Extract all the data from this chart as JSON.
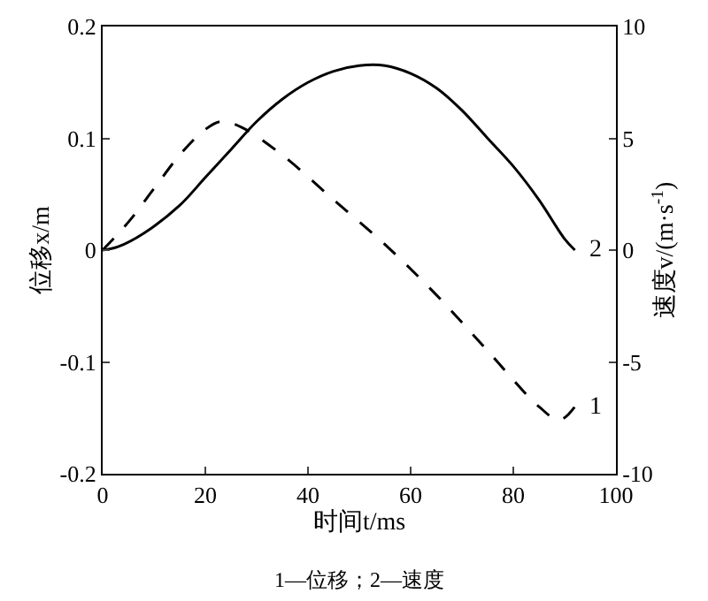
{
  "chart_data": {
    "type": "line",
    "xlabel": "时间t/ms",
    "ylabel": "位移x/m",
    "y2label": "速度v/(m·s$^{-1}$)",
    "xlim": [
      0,
      100
    ],
    "xticks": [
      0,
      20,
      40,
      60,
      80,
      100
    ],
    "ylim": [
      -0.2,
      0.2
    ],
    "yticks": [
      -0.2,
      -0.1,
      0,
      0.1,
      0.2
    ],
    "y2lim": [
      -10,
      10
    ],
    "y2ticks": [
      -10,
      -5,
      0,
      5,
      10
    ],
    "marker": "none",
    "series": [
      {
        "color": "#000000",
        "line_style": "dashed",
        "x": [
          0,
          5,
          10,
          15,
          20,
          23,
          27,
          35,
          45,
          55,
          65,
          75,
          85,
          89,
          92
        ],
        "values": [
          0,
          0.025,
          0.055,
          0.085,
          0.108,
          0.115,
          0.11,
          0.085,
          0.045,
          0.005,
          -0.04,
          -0.09,
          -0.14,
          -0.152,
          -0.14
        ]
      },
      {
        "color": "#000000",
        "line_style": "solid",
        "axis": "y2",
        "x": [
          0,
          3,
          8,
          15,
          20,
          25,
          30,
          35,
          40,
          45,
          50,
          55,
          60,
          65,
          70,
          75,
          80,
          85,
          90,
          92
        ],
        "values": [
          0,
          0.15,
          0.75,
          2,
          3.25,
          4.5,
          5.75,
          6.75,
          7.5,
          8,
          8.25,
          8.25,
          7.9,
          7.25,
          6.25,
          5,
          3.75,
          2.25,
          0.5,
          0
        ]
      }
    ],
    "annotations": [
      {
        "text": "1",
        "x": 92,
        "y": -0.14
      },
      {
        "text": "2",
        "x": 92,
        "y": 0
      },
      "1—位移；2—速度"
    ]
  }
}
